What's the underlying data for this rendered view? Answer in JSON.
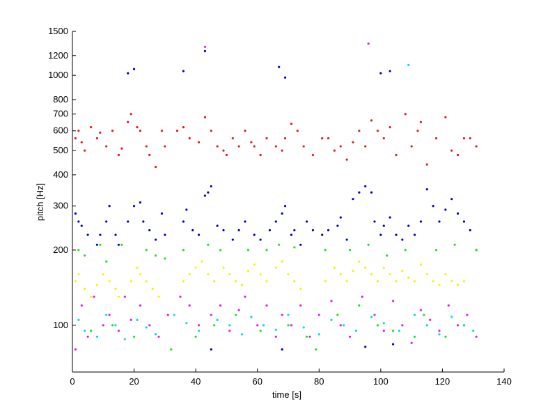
{
  "chart_data": {
    "type": "scatter",
    "title": "",
    "xlabel": "time [s]",
    "ylabel": "pitch [Hz]",
    "xlim": [
      0,
      140
    ],
    "ylim": [
      65,
      1500
    ],
    "yscale": "log",
    "xticks": [
      0,
      20,
      40,
      60,
      80,
      100,
      120,
      140
    ],
    "yticks": [
      100,
      200,
      300,
      400,
      500,
      600,
      700,
      800,
      1000,
      1200,
      1500
    ],
    "grid": false,
    "legend": "none",
    "series": [
      {
        "color": "#e31a1c",
        "points": [
          [
            1,
            560
          ],
          [
            2,
            600
          ],
          [
            3,
            540
          ],
          [
            4,
            500
          ],
          [
            6,
            620
          ],
          [
            8,
            560
          ],
          [
            9,
            590
          ],
          [
            11,
            520
          ],
          [
            13,
            600
          ],
          [
            15,
            480
          ],
          [
            16,
            510
          ],
          [
            18,
            650
          ],
          [
            19,
            700
          ],
          [
            21,
            620
          ],
          [
            22,
            600
          ],
          [
            24,
            520
          ],
          [
            25,
            480
          ],
          [
            27,
            430
          ],
          [
            29,
            600
          ],
          [
            30,
            520
          ],
          [
            34,
            600
          ],
          [
            36,
            620
          ],
          [
            38,
            560
          ],
          [
            41,
            540
          ],
          [
            43,
            680
          ],
          [
            45,
            600
          ],
          [
            47,
            520
          ],
          [
            49,
            500
          ],
          [
            50,
            480
          ],
          [
            52,
            560
          ],
          [
            54,
            520
          ],
          [
            56,
            600
          ],
          [
            58,
            540
          ],
          [
            59,
            520
          ],
          [
            61,
            480
          ],
          [
            63,
            560
          ],
          [
            66,
            520
          ],
          [
            68,
            500
          ],
          [
            69,
            560
          ],
          [
            71,
            640
          ],
          [
            73,
            600
          ],
          [
            75,
            520
          ],
          [
            78,
            480
          ],
          [
            81,
            560
          ],
          [
            83,
            560
          ],
          [
            85,
            500
          ],
          [
            87,
            520
          ],
          [
            89,
            460
          ],
          [
            91,
            540
          ],
          [
            93,
            600
          ],
          [
            95,
            520
          ],
          [
            97,
            660
          ],
          [
            99,
            600
          ],
          [
            101,
            560
          ],
          [
            103,
            620
          ],
          [
            105,
            480
          ],
          [
            108,
            700
          ],
          [
            110,
            520
          ],
          [
            112,
            600
          ],
          [
            113,
            650
          ],
          [
            115,
            440
          ],
          [
            118,
            560
          ],
          [
            121,
            680
          ],
          [
            123,
            500
          ],
          [
            125,
            480
          ],
          [
            127,
            560
          ],
          [
            129,
            560
          ],
          [
            131,
            520
          ]
        ]
      },
      {
        "color": "#0000c8",
        "points": [
          [
            1,
            280
          ],
          [
            2,
            260
          ],
          [
            3,
            250
          ],
          [
            5,
            230
          ],
          [
            8,
            210
          ],
          [
            9,
            230
          ],
          [
            11,
            260
          ],
          [
            12,
            300
          ],
          [
            14,
            230
          ],
          [
            15,
            210
          ],
          [
            18,
            260
          ],
          [
            20,
            300
          ],
          [
            22,
            310
          ],
          [
            23,
            260
          ],
          [
            25,
            240
          ],
          [
            27,
            220
          ],
          [
            29,
            280
          ],
          [
            30,
            230
          ],
          [
            36,
            260
          ],
          [
            37,
            290
          ],
          [
            39,
            240
          ],
          [
            41,
            230
          ],
          [
            43,
            330
          ],
          [
            44,
            340
          ],
          [
            45,
            360
          ],
          [
            47,
            250
          ],
          [
            49,
            240
          ],
          [
            52,
            220
          ],
          [
            54,
            240
          ],
          [
            56,
            260
          ],
          [
            59,
            230
          ],
          [
            61,
            220
          ],
          [
            64,
            240
          ],
          [
            66,
            260
          ],
          [
            68,
            280
          ],
          [
            69,
            300
          ],
          [
            71,
            230
          ],
          [
            72,
            240
          ],
          [
            74,
            210
          ],
          [
            76,
            260
          ],
          [
            78,
            240
          ],
          [
            81,
            230
          ],
          [
            83,
            240
          ],
          [
            86,
            250
          ],
          [
            87,
            270
          ],
          [
            89,
            220
          ],
          [
            91,
            320
          ],
          [
            93,
            340
          ],
          [
            95,
            360
          ],
          [
            97,
            340
          ],
          [
            98,
            260
          ],
          [
            100,
            230
          ],
          [
            101,
            250
          ],
          [
            103,
            270
          ],
          [
            105,
            230
          ],
          [
            107,
            220
          ],
          [
            109,
            250
          ],
          [
            111,
            230
          ],
          [
            113,
            260
          ],
          [
            115,
            350
          ],
          [
            117,
            300
          ],
          [
            119,
            260
          ],
          [
            121,
            290
          ],
          [
            123,
            320
          ],
          [
            125,
            280
          ],
          [
            127,
            260
          ],
          [
            129,
            240
          ],
          [
            131,
            200
          ],
          [
            18,
            1020
          ],
          [
            20,
            1060
          ],
          [
            36,
            1040
          ],
          [
            43,
            1250
          ],
          [
            67,
            1080
          ],
          [
            69,
            980
          ],
          [
            100,
            1020
          ],
          [
            103,
            1040
          ],
          [
            45,
            80
          ],
          [
            68,
            80
          ],
          [
            95,
            82
          ],
          [
            104,
            84
          ]
        ]
      },
      {
        "color": "#f5f500",
        "points": [
          [
            1,
            150
          ],
          [
            2,
            160
          ],
          [
            4,
            140
          ],
          [
            6,
            130
          ],
          [
            8,
            145
          ],
          [
            10,
            160
          ],
          [
            12,
            150
          ],
          [
            14,
            140
          ],
          [
            15,
            130
          ],
          [
            19,
            150
          ],
          [
            21,
            170
          ],
          [
            22,
            160
          ],
          [
            24,
            150
          ],
          [
            26,
            140
          ],
          [
            28,
            130
          ],
          [
            36,
            150
          ],
          [
            38,
            160
          ],
          [
            40,
            170
          ],
          [
            42,
            180
          ],
          [
            44,
            160
          ],
          [
            46,
            150
          ],
          [
            49,
            170
          ],
          [
            51,
            160
          ],
          [
            53,
            150
          ],
          [
            55,
            145
          ],
          [
            57,
            165
          ],
          [
            59,
            175
          ],
          [
            61,
            160
          ],
          [
            63,
            150
          ],
          [
            66,
            170
          ],
          [
            68,
            180
          ],
          [
            70,
            160
          ],
          [
            72,
            150
          ],
          [
            74,
            140
          ],
          [
            82,
            150
          ],
          [
            85,
            170
          ],
          [
            87,
            160
          ],
          [
            89,
            150
          ],
          [
            91,
            165
          ],
          [
            93,
            180
          ],
          [
            95,
            170
          ],
          [
            97,
            160
          ],
          [
            99,
            150
          ],
          [
            101,
            170
          ],
          [
            103,
            160
          ],
          [
            105,
            150
          ],
          [
            107,
            165
          ],
          [
            109,
            155
          ],
          [
            111,
            150
          ],
          [
            113,
            175
          ],
          [
            115,
            160
          ],
          [
            117,
            150
          ],
          [
            119,
            145
          ],
          [
            121,
            160
          ],
          [
            123,
            150
          ],
          [
            125,
            145
          ],
          [
            127,
            150
          ]
        ]
      },
      {
        "color": "#20e020",
        "points": [
          [
            2,
            200
          ],
          [
            4,
            190
          ],
          [
            6,
            95
          ],
          [
            9,
            210
          ],
          [
            11,
            180
          ],
          [
            13,
            100
          ],
          [
            16,
            210
          ],
          [
            20,
            90
          ],
          [
            24,
            200
          ],
          [
            27,
            190
          ],
          [
            30,
            185
          ],
          [
            32,
            80
          ],
          [
            36,
            200
          ],
          [
            40,
            90
          ],
          [
            44,
            210
          ],
          [
            46,
            100
          ],
          [
            48,
            200
          ],
          [
            53,
            110
          ],
          [
            57,
            200
          ],
          [
            61,
            95
          ],
          [
            63,
            200
          ],
          [
            67,
            210
          ],
          [
            70,
            100
          ],
          [
            72,
            205
          ],
          [
            76,
            90
          ],
          [
            79,
            80
          ],
          [
            82,
            200
          ],
          [
            86,
            110
          ],
          [
            90,
            200
          ],
          [
            93,
            120
          ],
          [
            96,
            210
          ],
          [
            99,
            100
          ],
          [
            102,
            190
          ],
          [
            104,
            95
          ],
          [
            108,
            200
          ],
          [
            111,
            90
          ],
          [
            114,
            110
          ],
          [
            118,
            200
          ],
          [
            121,
            90
          ],
          [
            124,
            210
          ],
          [
            127,
            100
          ],
          [
            131,
            200
          ]
        ]
      },
      {
        "color": "#e020e0",
        "points": [
          [
            1,
            80
          ],
          [
            3,
            120
          ],
          [
            5,
            90
          ],
          [
            7,
            130
          ],
          [
            10,
            100
          ],
          [
            12,
            110
          ],
          [
            15,
            95
          ],
          [
            17,
            130
          ],
          [
            19,
            105
          ],
          [
            22,
            120
          ],
          [
            25,
            100
          ],
          [
            28,
            90
          ],
          [
            31,
            110
          ],
          [
            35,
            130
          ],
          [
            38,
            120
          ],
          [
            41,
            100
          ],
          [
            43,
            1300
          ],
          [
            45,
            110
          ],
          [
            48,
            120
          ],
          [
            51,
            95
          ],
          [
            54,
            115
          ],
          [
            56,
            130
          ],
          [
            60,
            100
          ],
          [
            63,
            120
          ],
          [
            66,
            90
          ],
          [
            68,
            110
          ],
          [
            71,
            100
          ],
          [
            74,
            120
          ],
          [
            77,
            90
          ],
          [
            80,
            110
          ],
          [
            84,
            125
          ],
          [
            87,
            100
          ],
          [
            90,
            90
          ],
          [
            94,
            130
          ],
          [
            96,
            1340
          ],
          [
            98,
            110
          ],
          [
            101,
            95
          ],
          [
            104,
            125
          ],
          [
            107,
            100
          ],
          [
            110,
            85
          ],
          [
            113,
            115
          ],
          [
            116,
            105
          ],
          [
            119,
            95
          ],
          [
            122,
            120
          ],
          [
            125,
            100
          ],
          [
            128,
            110
          ],
          [
            131,
            90
          ]
        ]
      },
      {
        "color": "#00e0e0",
        "points": [
          [
            2,
            105
          ],
          [
            4,
            95
          ],
          [
            8,
            90
          ],
          [
            11,
            110
          ],
          [
            14,
            100
          ],
          [
            17,
            88
          ],
          [
            21,
            105
          ],
          [
            24,
            98
          ],
          [
            27,
            92
          ],
          [
            33,
            110
          ],
          [
            37,
            102
          ],
          [
            41,
            95
          ],
          [
            47,
            105
          ],
          [
            51,
            100
          ],
          [
            55,
            92
          ],
          [
            58,
            108
          ],
          [
            62,
            100
          ],
          [
            66,
            96
          ],
          [
            70,
            110
          ],
          [
            75,
            98
          ],
          [
            80,
            92
          ],
          [
            84,
            105
          ],
          [
            88,
            100
          ],
          [
            92,
            95
          ],
          [
            97,
            108
          ],
          [
            101,
            102
          ],
          [
            106,
            95
          ],
          [
            109,
            1100
          ],
          [
            111,
            110
          ],
          [
            115,
            100
          ],
          [
            119,
            92
          ],
          [
            123,
            108
          ],
          [
            127,
            100
          ],
          [
            130,
            95
          ]
        ]
      }
    ]
  }
}
